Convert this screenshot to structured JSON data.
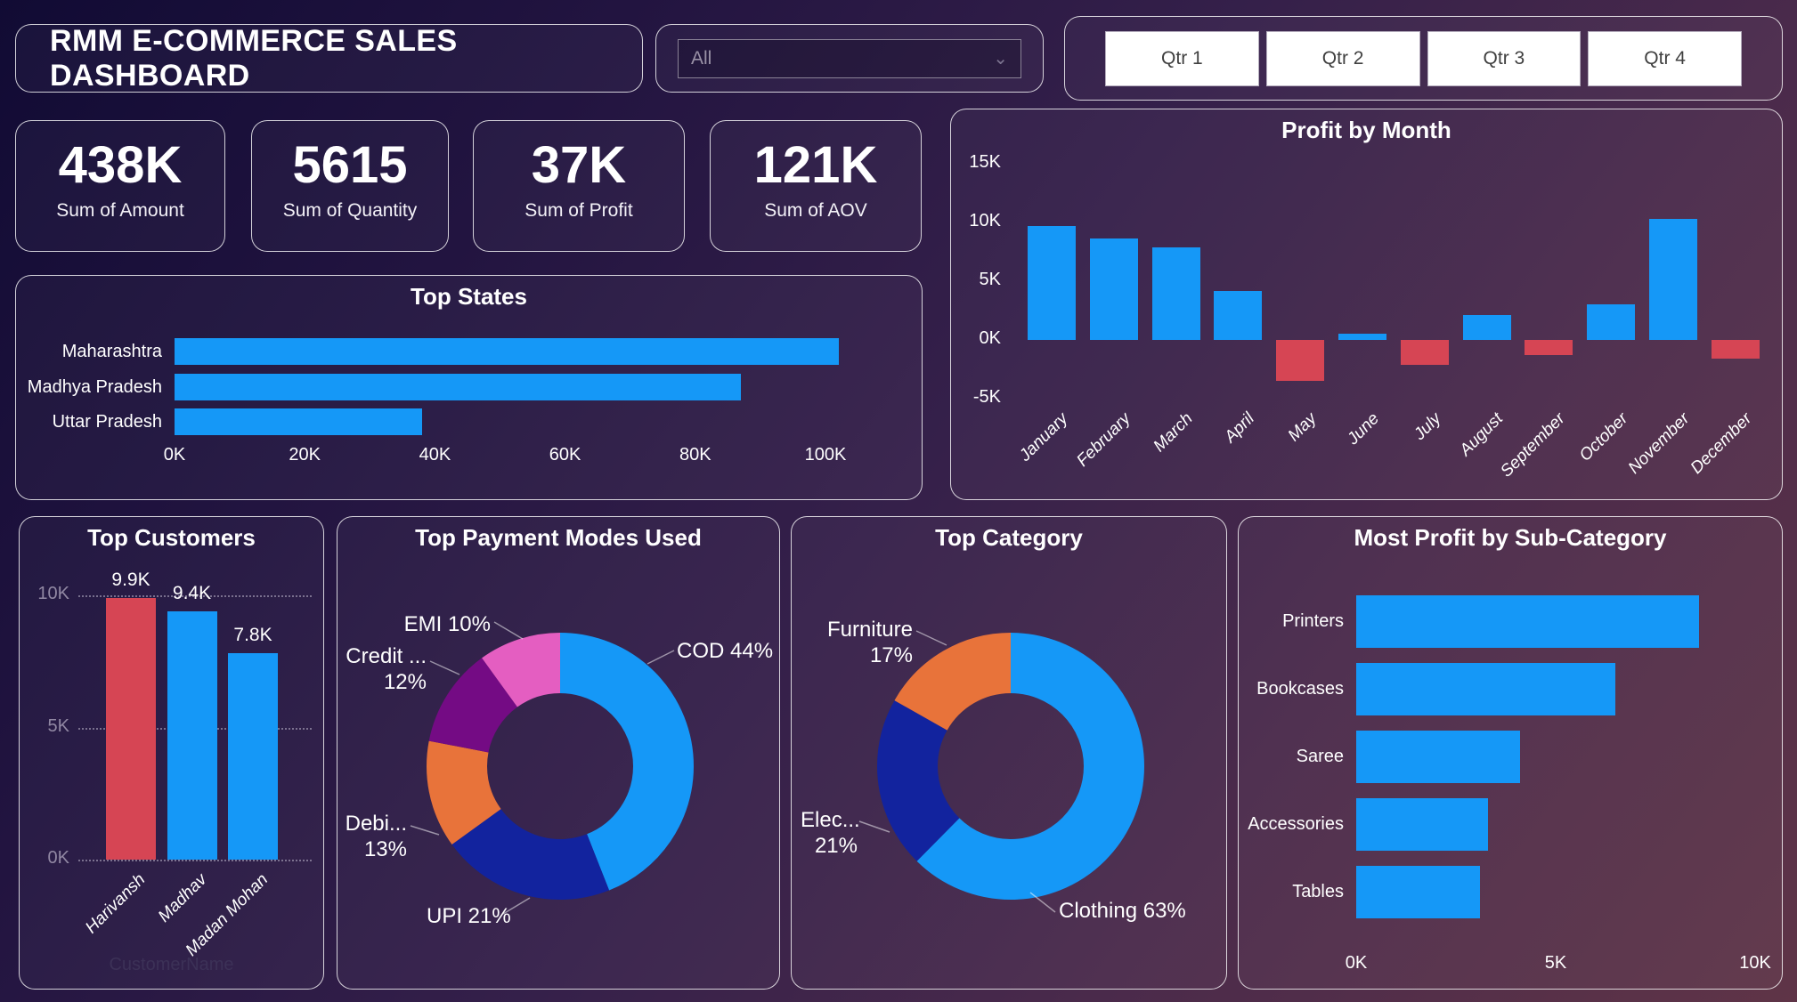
{
  "header": {
    "title": "RMM E-COMMERCE SALES DASHBOARD",
    "filter": {
      "value": "All"
    },
    "quarters": [
      "Qtr 1",
      "Qtr 2",
      "Qtr 3",
      "Qtr 4"
    ]
  },
  "kpis": [
    {
      "value": "438K",
      "label": "Sum of Amount"
    },
    {
      "value": "5615",
      "label": "Sum of Quantity"
    },
    {
      "value": "37K",
      "label": "Sum of Profit"
    },
    {
      "value": "121K",
      "label": "Sum of AOV"
    }
  ],
  "colors": {
    "blue": "#1598F7",
    "red": "#D64554",
    "navy": "#12239E",
    "orange": "#E8733A",
    "purple": "#740B84",
    "pink": "#E45EC1"
  },
  "chart_data": [
    {
      "id": "top_states",
      "type": "bar",
      "orientation": "horizontal",
      "title": "Top States",
      "categories": [
        "Maharashtra",
        "Madhya Pradesh",
        "Uttar Pradesh"
      ],
      "values": [
        102,
        87,
        38
      ],
      "unit": "K",
      "xticks": [
        "0K",
        "20K",
        "40K",
        "60K",
        "80K",
        "100K"
      ],
      "xlim": [
        0,
        100
      ],
      "bar_color": "#1598F7",
      "grid": false
    },
    {
      "id": "profit_by_month",
      "type": "bar",
      "orientation": "vertical",
      "title": "Profit by Month",
      "categories": [
        "January",
        "February",
        "March",
        "April",
        "May",
        "June",
        "July",
        "August",
        "September",
        "October",
        "November",
        "December"
      ],
      "values": [
        9.7,
        8.6,
        7.9,
        4.2,
        -3.5,
        0.5,
        -2.1,
        2.1,
        -1.3,
        3.0,
        10.3,
        -1.6
      ],
      "unit": "K",
      "yticks": [
        "15K",
        "10K",
        "5K",
        "0K",
        "-5K"
      ],
      "ylim": [
        -5,
        15
      ],
      "positive_color": "#1598F7",
      "negative_color": "#D64554",
      "grid": false
    },
    {
      "id": "top_customers",
      "type": "bar",
      "orientation": "vertical",
      "title": "Top Customers",
      "categories": [
        "Harivansh",
        "Madhav",
        "Madan Mohan"
      ],
      "values": [
        9.9,
        9.4,
        7.8
      ],
      "unit": "K",
      "data_labels": [
        "9.9K",
        "9.4K",
        "7.8K"
      ],
      "colors": [
        "#D64554",
        "#1598F7",
        "#1598F7"
      ],
      "yticks": [
        "10K",
        "5K",
        "0K"
      ],
      "ylim": [
        0,
        10
      ],
      "axis_title": "CustomerName",
      "grid": true
    },
    {
      "id": "payment_modes",
      "type": "pie",
      "title": "Top Payment Modes Used",
      "slices": [
        {
          "label": "COD 44%",
          "name": "COD",
          "value": 44,
          "color": "#1598F7"
        },
        {
          "label": "UPI 21%",
          "name": "UPI",
          "value": 21,
          "color": "#12239E"
        },
        {
          "label": "Debi... 13%",
          "name": "Debit",
          "value": 13,
          "color": "#E8733A"
        },
        {
          "label": "Credit ... 12%",
          "name": "Credit",
          "value": 12,
          "color": "#740B84"
        },
        {
          "label": "EMI 10%",
          "name": "EMI",
          "value": 10,
          "color": "#E45EC1"
        }
      ]
    },
    {
      "id": "top_category",
      "type": "pie",
      "title": "Top Category",
      "slices": [
        {
          "label": "Clothing 63%",
          "name": "Clothing",
          "value": 63,
          "color": "#1598F7"
        },
        {
          "label": "Elec... 21%",
          "name": "Electronics",
          "value": 21,
          "color": "#12239E"
        },
        {
          "label": "Furniture 17%",
          "name": "Furniture",
          "value": 17,
          "color": "#E8733A"
        }
      ]
    },
    {
      "id": "profit_by_subcategory",
      "type": "bar",
      "orientation": "horizontal",
      "title": "Most Profit by Sub-Category",
      "categories": [
        "Printers",
        "Bookcases",
        "Saree",
        "Accessories",
        "Tables"
      ],
      "values": [
        8.6,
        6.5,
        4.1,
        3.3,
        3.1
      ],
      "unit": "K",
      "xticks": [
        "0K",
        "5K",
        "10K"
      ],
      "xlim": [
        0,
        10
      ],
      "bar_color": "#1598F7",
      "grid": false
    }
  ]
}
